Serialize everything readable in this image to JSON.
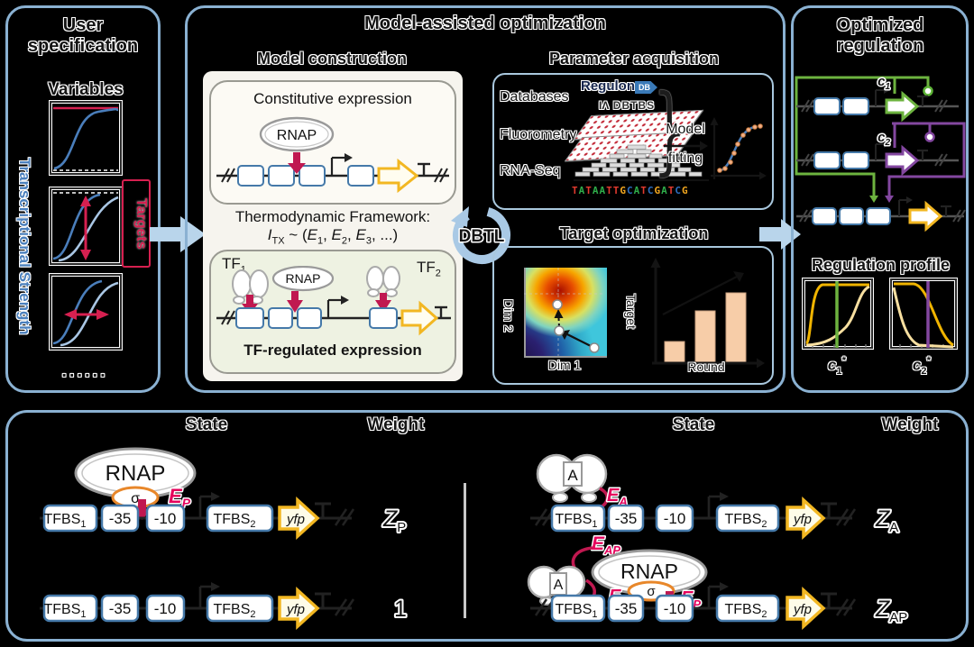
{
  "user": {
    "title": "User specification",
    "variables_label": "Variables",
    "y_axis_label": "Transcriptional Strength",
    "targets_label": "Targets",
    "ellipsis": "......"
  },
  "mao": {
    "title": "Model-assisted optimization",
    "construction": {
      "label": "Model construction",
      "constitutive_title": "Constitutive expression",
      "rnap": "RNAP",
      "thermo_title": "Thermodynamic Framework:",
      "thermo": {
        "sym": "I",
        "sym_sub": "TX",
        "tilde": " ~ (",
        "e": "E",
        "s1": "1",
        "s2": "2",
        "s3": "3",
        "sep": ", ",
        "end": ", ...)"
      },
      "tf1": "TF",
      "tf1_sub": "1",
      "tf2": "TF",
      "tf2_sub": "2",
      "tf_title": "TF-regulated expression"
    },
    "param": {
      "label": "Parameter acquisition",
      "databases": "Databases",
      "regulon": "Regulon",
      "regulon_db": "DB",
      "dbtbs_icon": "ΙΛ",
      "dbtbs": "DBTBS",
      "fluorometry": "Fluorometry",
      "rnaseq": "RNA-Seq",
      "sequence": "TATAATTGCATCGATCG",
      "fitting_1": "Model",
      "fitting_2": "fitting"
    },
    "dbtl": "DBTL",
    "target": {
      "label": "Target optimization",
      "dim1": "Dim 1",
      "dim2": "Dim 2",
      "target_axis": "Target",
      "round_axis": "Round"
    }
  },
  "opt": {
    "title": "Optimized regulation",
    "c": "c",
    "c1_sub": "1",
    "c2_sub": "2",
    "star": "*",
    "profile_label": "Regulation profile"
  },
  "states": {
    "state_header": "State",
    "weight_header": "Weight",
    "rnap": "RNAP",
    "sigma": "σ",
    "activator": "A",
    "tfbs": "TFBS",
    "tfbs1_sub": "1",
    "tfbs2_sub": "2",
    "minus35": "-35",
    "minus10": "-10",
    "yfp": "yfp",
    "e": "E",
    "p_sub": "P",
    "a_sub": "A",
    "ap_sub": "AP",
    "z": "Z",
    "one": "1"
  }
}
